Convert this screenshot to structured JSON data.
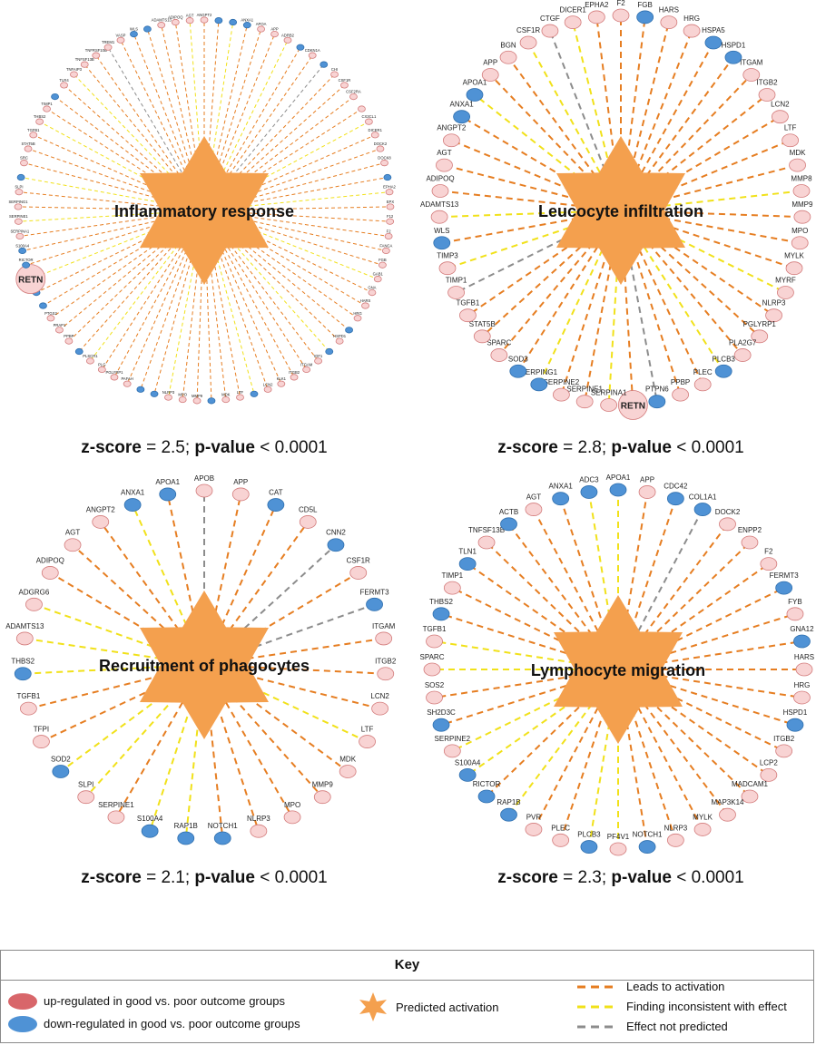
{
  "colors": {
    "up": "#f8d3d3",
    "up_stroke": "#d37b7b",
    "down": "#4f92d5",
    "down_stroke": "#2f6fae",
    "activation": "#f4a04e",
    "leads": "#e67e22",
    "inconsistent": "#f1e11a",
    "not_predicted": "#8c8c8c"
  },
  "panels": [
    {
      "title": "Inflammatory response",
      "stats": {
        "z_label": "z-score",
        "z_text": " = 2.5; ",
        "p_label": "p-value",
        "p_text": " < 0.0001"
      },
      "node_scale": "small",
      "nodes": [
        {
          "l": "ANGPT2",
          "s": "up",
          "e": "leads"
        },
        {
          "l": "",
          "s": "down",
          "e": "leads"
        },
        {
          "l": "",
          "s": "down",
          "e": "inconsistent"
        },
        {
          "l": "ANXA1",
          "s": "down",
          "e": "leads"
        },
        {
          "l": "APOA",
          "s": "up",
          "e": "leads"
        },
        {
          "l": "APP",
          "s": "up",
          "e": "leads"
        },
        {
          "l": "ADRB2",
          "s": "up",
          "e": "inconsistent"
        },
        {
          "l": "",
          "s": "down",
          "e": "leads"
        },
        {
          "l": "CDKN1A",
          "s": "up",
          "e": "leads"
        },
        {
          "l": "",
          "s": "down",
          "e": "not_predicted"
        },
        {
          "l": "CHI",
          "s": "up",
          "e": "leads"
        },
        {
          "l": "CSF1R",
          "s": "up",
          "e": "leads"
        },
        {
          "l": "CSF2RA",
          "s": "up",
          "e": "leads"
        },
        {
          "l": "",
          "s": "up",
          "e": "leads"
        },
        {
          "l": "CX3CL1",
          "s": "up",
          "e": "inconsistent"
        },
        {
          "l": "DICER1",
          "s": "up",
          "e": "leads"
        },
        {
          "l": "DOCK2",
          "s": "up",
          "e": "leads"
        },
        {
          "l": "DOCK8",
          "s": "up",
          "e": "leads"
        },
        {
          "l": "",
          "s": "down",
          "e": "leads"
        },
        {
          "l": "EPHA2",
          "s": "up",
          "e": "inconsistent"
        },
        {
          "l": "EPX",
          "s": "up",
          "e": "leads"
        },
        {
          "l": "F12",
          "s": "up",
          "e": "leads"
        },
        {
          "l": "F2",
          "s": "up",
          "e": "leads"
        },
        {
          "l": "FANCA",
          "s": "up",
          "e": "leads"
        },
        {
          "l": "FGB",
          "s": "up",
          "e": "leads"
        },
        {
          "l": "GAB1",
          "s": "up",
          "e": "inconsistent"
        },
        {
          "l": "GNA",
          "s": "up",
          "e": "leads"
        },
        {
          "l": "HARS",
          "s": "up",
          "e": "leads"
        },
        {
          "l": "HRG",
          "s": "up",
          "e": "leads"
        },
        {
          "l": "",
          "s": "down",
          "e": "leads"
        },
        {
          "l": "HSPD1",
          "s": "up",
          "e": "leads"
        },
        {
          "l": "",
          "s": "down",
          "e": "inconsistent"
        },
        {
          "l": "IGF1",
          "s": "up",
          "e": "leads"
        },
        {
          "l": "ITGAM",
          "s": "up",
          "e": "leads"
        },
        {
          "l": "ITGB2",
          "s": "up",
          "e": "leads"
        },
        {
          "l": "KLK1",
          "s": "up",
          "e": "leads"
        },
        {
          "l": "LCN2",
          "s": "up",
          "e": "leads"
        },
        {
          "l": "",
          "s": "down",
          "e": "inconsistent"
        },
        {
          "l": "LTF",
          "s": "up",
          "e": "leads"
        },
        {
          "l": "MDK",
          "s": "up",
          "e": "leads"
        },
        {
          "l": "",
          "s": "down",
          "e": "leads"
        },
        {
          "l": "MMP9",
          "s": "up",
          "e": "leads"
        },
        {
          "l": "MPO",
          "s": "up",
          "e": "leads"
        },
        {
          "l": "NLRP3",
          "s": "up",
          "e": "inconsistent"
        },
        {
          "l": "",
          "s": "down",
          "e": "leads"
        },
        {
          "l": "",
          "s": "down",
          "e": "leads"
        },
        {
          "l": "PAFAH",
          "s": "up",
          "e": "leads"
        },
        {
          "l": "PGLYRP1",
          "s": "up",
          "e": "leads"
        },
        {
          "l": "PLG",
          "s": "up",
          "e": "leads"
        },
        {
          "l": "PLSCR1",
          "s": "up",
          "e": "inconsistent"
        },
        {
          "l": "",
          "s": "down",
          "e": "leads"
        },
        {
          "l": "PPBP",
          "s": "up",
          "e": "leads"
        },
        {
          "l": "PRAP1",
          "s": "up",
          "e": "leads"
        },
        {
          "l": "PTGS2",
          "s": "up",
          "e": "leads"
        },
        {
          "l": "",
          "s": "down",
          "e": "leads"
        },
        {
          "l": "RAP1B",
          "s": "down",
          "e": "leads"
        },
        {
          "l": "RETN",
          "s": "up",
          "e": "inconsistent"
        },
        {
          "l": "RICTOR",
          "s": "down",
          "e": "leads"
        },
        {
          "l": "S100A4",
          "s": "down",
          "e": "leads"
        },
        {
          "l": "SERPINA1",
          "s": "up",
          "e": "leads"
        },
        {
          "l": "SERPINE1",
          "s": "up",
          "e": "inconsistent"
        },
        {
          "l": "SERPING1",
          "s": "up",
          "e": "leads"
        },
        {
          "l": "SLPI",
          "s": "up",
          "e": "leads"
        },
        {
          "l": "",
          "s": "down",
          "e": "inconsistent"
        },
        {
          "l": "SRC",
          "s": "up",
          "e": "leads"
        },
        {
          "l": "STAT5B",
          "s": "up",
          "e": "leads"
        },
        {
          "l": "TGFB1",
          "s": "up",
          "e": "leads"
        },
        {
          "l": "THBS2",
          "s": "up",
          "e": "inconsistent"
        },
        {
          "l": "TIMP1",
          "s": "up",
          "e": "leads"
        },
        {
          "l": "",
          "s": "down",
          "e": "leads"
        },
        {
          "l": "TLR4",
          "s": "up",
          "e": "leads"
        },
        {
          "l": "TNFAIP3",
          "s": "up",
          "e": "inconsistent"
        },
        {
          "l": "TNFSF13B",
          "s": "up",
          "e": "leads"
        },
        {
          "l": "TNFRSF10B",
          "s": "up",
          "e": "leads"
        },
        {
          "l": "TREM1",
          "s": "up",
          "e": "not_predicted"
        },
        {
          "l": "VASP",
          "s": "up",
          "e": "leads"
        },
        {
          "l": "WLS",
          "s": "down",
          "e": "leads"
        },
        {
          "l": "",
          "s": "down",
          "e": "leads"
        },
        {
          "l": "ADAMTS13",
          "s": "up",
          "e": "leads"
        },
        {
          "l": "ADIPOQ",
          "s": "up",
          "e": "leads"
        },
        {
          "l": "AGT",
          "s": "up",
          "e": "inconsistent"
        }
      ]
    },
    {
      "title": "Leucocyte infiltration",
      "stats": {
        "z_label": "z-score",
        "z_text": " = 2.8; ",
        "p_label": "p-value",
        "p_text": " < 0.0001"
      },
      "node_scale": "large",
      "nodes": [
        {
          "l": "F2",
          "s": "up",
          "e": "leads"
        },
        {
          "l": "FGB",
          "s": "down",
          "e": "leads"
        },
        {
          "l": "HARS",
          "s": "up",
          "e": "leads"
        },
        {
          "l": "HRG",
          "s": "up",
          "e": "leads"
        },
        {
          "l": "HSPA5",
          "s": "down",
          "e": "leads"
        },
        {
          "l": "HSPD1",
          "s": "down",
          "e": "leads"
        },
        {
          "l": "ITGAM",
          "s": "up",
          "e": "leads"
        },
        {
          "l": "ITGB2",
          "s": "up",
          "e": "leads"
        },
        {
          "l": "LCN2",
          "s": "up",
          "e": "leads"
        },
        {
          "l": "LTF",
          "s": "up",
          "e": "leads"
        },
        {
          "l": "MDK",
          "s": "up",
          "e": "leads"
        },
        {
          "l": "MMP8",
          "s": "up",
          "e": "inconsistent"
        },
        {
          "l": "MMP9",
          "s": "up",
          "e": "leads"
        },
        {
          "l": "MPO",
          "s": "up",
          "e": "leads"
        },
        {
          "l": "MYLK",
          "s": "up",
          "e": "leads"
        },
        {
          "l": "MYRF",
          "s": "up",
          "e": "inconsistent"
        },
        {
          "l": "NLRP3",
          "s": "up",
          "e": "leads"
        },
        {
          "l": "PGLYRP1",
          "s": "up",
          "e": "leads"
        },
        {
          "l": "PLA2G7",
          "s": "up",
          "e": "leads"
        },
        {
          "l": "PLCB3",
          "s": "down",
          "e": "inconsistent"
        },
        {
          "l": "PLEC",
          "s": "up",
          "e": "leads"
        },
        {
          "l": "PPBP",
          "s": "up",
          "e": "leads"
        },
        {
          "l": "PTPN6",
          "s": "down",
          "e": "not_predicted"
        },
        {
          "l": "RETN",
          "s": "up",
          "e": "leads"
        },
        {
          "l": "SERPINA1",
          "s": "up",
          "e": "inconsistent"
        },
        {
          "l": "SERPINE1",
          "s": "up",
          "e": "leads"
        },
        {
          "l": "SERPINE2",
          "s": "up",
          "e": "leads"
        },
        {
          "l": "SERPING1",
          "s": "down",
          "e": "inconsistent"
        },
        {
          "l": "SOD3",
          "s": "down",
          "e": "leads"
        },
        {
          "l": "SPARC",
          "s": "up",
          "e": "leads"
        },
        {
          "l": "STAT5B",
          "s": "up",
          "e": "leads"
        },
        {
          "l": "TGFB1",
          "s": "up",
          "e": "leads"
        },
        {
          "l": "TIMP1",
          "s": "up",
          "e": "not_predicted"
        },
        {
          "l": "TIMP3",
          "s": "up",
          "e": "inconsistent"
        },
        {
          "l": "WLS",
          "s": "down",
          "e": "leads"
        },
        {
          "l": "ADAMTS13",
          "s": "up",
          "e": "inconsistent"
        },
        {
          "l": "ADIPOQ",
          "s": "up",
          "e": "leads"
        },
        {
          "l": "AGT",
          "s": "up",
          "e": "leads"
        },
        {
          "l": "ANGPT2",
          "s": "up",
          "e": "leads"
        },
        {
          "l": "ANXA1",
          "s": "down",
          "e": "leads"
        },
        {
          "l": "APOA1",
          "s": "down",
          "e": "inconsistent"
        },
        {
          "l": "APP",
          "s": "up",
          "e": "leads"
        },
        {
          "l": "BGN",
          "s": "up",
          "e": "leads"
        },
        {
          "l": "CSF1R",
          "s": "up",
          "e": "inconsistent"
        },
        {
          "l": "CTGF",
          "s": "up",
          "e": "not_predicted"
        },
        {
          "l": "DICER1",
          "s": "up",
          "e": "inconsistent"
        },
        {
          "l": "EPHA2",
          "s": "up",
          "e": "leads"
        }
      ]
    },
    {
      "title": "Recruitment of phagocytes",
      "stats": {
        "z_label": "z-score",
        "z_text": " = 2.1; ",
        "p_label": "p-value",
        "p_text": " < 0.0001"
      },
      "node_scale": "large",
      "nodes": [
        {
          "l": "APOB",
          "s": "up",
          "e": "not_predicted"
        },
        {
          "l": "APP",
          "s": "up",
          "e": "leads"
        },
        {
          "l": "CAT",
          "s": "down",
          "e": "leads"
        },
        {
          "l": "CD5L",
          "s": "up",
          "e": "leads"
        },
        {
          "l": "CNN2",
          "s": "down",
          "e": "not_predicted"
        },
        {
          "l": "CSF1R",
          "s": "up",
          "e": "leads"
        },
        {
          "l": "FERMT3",
          "s": "down",
          "e": "not_predicted"
        },
        {
          "l": "ITGAM",
          "s": "up",
          "e": "leads"
        },
        {
          "l": "ITGB2",
          "s": "up",
          "e": "leads"
        },
        {
          "l": "LCN2",
          "s": "up",
          "e": "leads"
        },
        {
          "l": "LTF",
          "s": "up",
          "e": "inconsistent"
        },
        {
          "l": "MDK",
          "s": "up",
          "e": "leads"
        },
        {
          "l": "MMP9",
          "s": "up",
          "e": "leads"
        },
        {
          "l": "MPO",
          "s": "up",
          "e": "leads"
        },
        {
          "l": "NLRP3",
          "s": "up",
          "e": "leads"
        },
        {
          "l": "NOTCH1",
          "s": "down",
          "e": "leads"
        },
        {
          "l": "RAP1B",
          "s": "down",
          "e": "inconsistent"
        },
        {
          "l": "S100A4",
          "s": "down",
          "e": "inconsistent"
        },
        {
          "l": "SERPINE1",
          "s": "up",
          "e": "leads"
        },
        {
          "l": "SLPI",
          "s": "up",
          "e": "inconsistent"
        },
        {
          "l": "SOD2",
          "s": "down",
          "e": "inconsistent"
        },
        {
          "l": "TFPI",
          "s": "up",
          "e": "leads"
        },
        {
          "l": "TGFB1",
          "s": "up",
          "e": "leads"
        },
        {
          "l": "THBS2",
          "s": "down",
          "e": "inconsistent"
        },
        {
          "l": "ADAMTS13",
          "s": "up",
          "e": "inconsistent"
        },
        {
          "l": "ADGRG6",
          "s": "up",
          "e": "inconsistent"
        },
        {
          "l": "ADIPOQ",
          "s": "up",
          "e": "leads"
        },
        {
          "l": "AGT",
          "s": "up",
          "e": "leads"
        },
        {
          "l": "ANGPT2",
          "s": "up",
          "e": "leads"
        },
        {
          "l": "ANXA1",
          "s": "down",
          "e": "inconsistent"
        },
        {
          "l": "APOA1",
          "s": "down",
          "e": "leads"
        }
      ]
    },
    {
      "title": "Lymphocyte migration",
      "stats": {
        "z_label": "z-score",
        "z_text": " = 2.3; ",
        "p_label": "p-value",
        "p_text": " < 0.0001"
      },
      "node_scale": "large",
      "nodes": [
        {
          "l": "APOA1",
          "s": "down",
          "e": "inconsistent"
        },
        {
          "l": "APP",
          "s": "up",
          "e": "leads"
        },
        {
          "l": "CDC42",
          "s": "down",
          "e": "leads"
        },
        {
          "l": "COL1A1",
          "s": "down",
          "e": "not_predicted"
        },
        {
          "l": "DOCK2",
          "s": "up",
          "e": "leads"
        },
        {
          "l": "ENPP2",
          "s": "up",
          "e": "leads"
        },
        {
          "l": "F2",
          "s": "up",
          "e": "leads"
        },
        {
          "l": "FERMT3",
          "s": "down",
          "e": "leads"
        },
        {
          "l": "FYB",
          "s": "up",
          "e": "leads"
        },
        {
          "l": "GNA12",
          "s": "down",
          "e": "leads"
        },
        {
          "l": "HARS",
          "s": "up",
          "e": "leads"
        },
        {
          "l": "HRG",
          "s": "up",
          "e": "leads"
        },
        {
          "l": "HSPD1",
          "s": "down",
          "e": "leads"
        },
        {
          "l": "ITGB2",
          "s": "up",
          "e": "leads"
        },
        {
          "l": "LCP2",
          "s": "up",
          "e": "leads"
        },
        {
          "l": "MADCAM1",
          "s": "up",
          "e": "leads"
        },
        {
          "l": "MAP3K14",
          "s": "up",
          "e": "leads"
        },
        {
          "l": "MYLK",
          "s": "up",
          "e": "leads"
        },
        {
          "l": "NLRP3",
          "s": "up",
          "e": "leads"
        },
        {
          "l": "NOTCH1",
          "s": "down",
          "e": "leads"
        },
        {
          "l": "PF4V1",
          "s": "up",
          "e": "inconsistent"
        },
        {
          "l": "PLCB3",
          "s": "down",
          "e": "inconsistent"
        },
        {
          "l": "PLEC",
          "s": "up",
          "e": "leads"
        },
        {
          "l": "PVR",
          "s": "up",
          "e": "leads"
        },
        {
          "l": "RAP1B",
          "s": "down",
          "e": "inconsistent"
        },
        {
          "l": "RICTOR",
          "s": "down",
          "e": "leads"
        },
        {
          "l": "S100A4",
          "s": "down",
          "e": "inconsistent"
        },
        {
          "l": "SERPINE2",
          "s": "up",
          "e": "inconsistent"
        },
        {
          "l": "SH2D3C",
          "s": "down",
          "e": "leads"
        },
        {
          "l": "SOS2",
          "s": "up",
          "e": "leads"
        },
        {
          "l": "SPARC",
          "s": "up",
          "e": "inconsistent"
        },
        {
          "l": "TGFB1",
          "s": "up",
          "e": "inconsistent"
        },
        {
          "l": "THBS2",
          "s": "down",
          "e": "leads"
        },
        {
          "l": "TIMP1",
          "s": "up",
          "e": "leads"
        },
        {
          "l": "TLN1",
          "s": "down",
          "e": "leads"
        },
        {
          "l": "TNFSF13B",
          "s": "up",
          "e": "leads"
        },
        {
          "l": "ACTB",
          "s": "down",
          "e": "leads"
        },
        {
          "l": "AGT",
          "s": "up",
          "e": "leads"
        },
        {
          "l": "ANXA1",
          "s": "down",
          "e": "leads"
        },
        {
          "l": "ADC3",
          "s": "down",
          "e": "inconsistent"
        }
      ]
    }
  ],
  "key": {
    "title": "Key",
    "up": "up-regulated in good vs. poor outcome groups",
    "down": "down-regulated in good vs. poor outcome groups",
    "activation": "Predicted activation",
    "leads": "Leads to activation",
    "inconsistent": "Finding inconsistent with effect",
    "not_predicted": "Effect not predicted"
  }
}
